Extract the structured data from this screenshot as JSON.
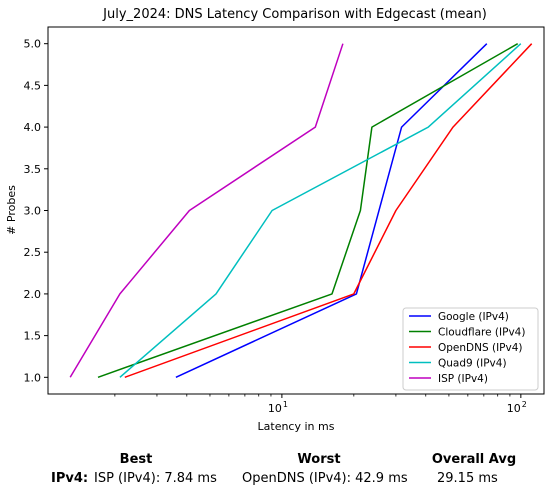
{
  "chart_data": {
    "type": "line",
    "title": "July_2024: DNS Latency Comparison with Edgecast (mean)",
    "xlabel": "Latency in ms",
    "ylabel": "# Probes",
    "xscale": "log",
    "xlim": [
      1.05,
      125
    ],
    "ylim": [
      0.8,
      5.2
    ],
    "xticks": [
      {
        "value": 10,
        "base": "10",
        "exp": "1"
      },
      {
        "value": 100,
        "base": "10",
        "exp": "2"
      }
    ],
    "yticks": [
      "1.0",
      "1.5",
      "2.0",
      "2.5",
      "3.0",
      "3.5",
      "4.0",
      "4.5",
      "5.0"
    ],
    "grid": false,
    "legend_position": "lower right",
    "series": [
      {
        "name": "Google (IPv4)",
        "color": "#0000ff",
        "points": [
          [
            3.6,
            1
          ],
          [
            20.5,
            2
          ],
          [
            31.7,
            4
          ],
          [
            72.0,
            5
          ]
        ]
      },
      {
        "name": "Cloudflare (IPv4)",
        "color": "#008000",
        "points": [
          [
            1.7,
            1
          ],
          [
            16.2,
            2
          ],
          [
            21.3,
            3
          ],
          [
            23.8,
            4
          ],
          [
            97.0,
            5
          ]
        ]
      },
      {
        "name": "OpenDNS (IPv4)",
        "color": "#ff0000",
        "points": [
          [
            2.2,
            1
          ],
          [
            20.0,
            2
          ],
          [
            30.0,
            3
          ],
          [
            52.0,
            4
          ],
          [
            111.0,
            5
          ]
        ]
      },
      {
        "name": "Quad9 (IPv4)",
        "color": "#00bfbf",
        "points": [
          [
            2.1,
            1
          ],
          [
            5.3,
            2
          ],
          [
            9.1,
            3
          ],
          [
            41.0,
            4
          ],
          [
            100.0,
            5
          ]
        ]
      },
      {
        "name": "ISP (IPv4)",
        "color": "#bf00bf",
        "points": [
          [
            1.3,
            1
          ],
          [
            2.1,
            2
          ],
          [
            4.1,
            3
          ],
          [
            13.8,
            4
          ],
          [
            18.0,
            5
          ]
        ]
      }
    ]
  },
  "summary": {
    "best_header": "Best",
    "worst_header": "Worst",
    "avg_header": "Overall Avg",
    "row_label": "IPv4:",
    "best_value": "ISP (IPv4): 7.84 ms",
    "worst_value": "OpenDNS (IPv4): 42.9 ms",
    "avg_value": "29.15 ms"
  }
}
